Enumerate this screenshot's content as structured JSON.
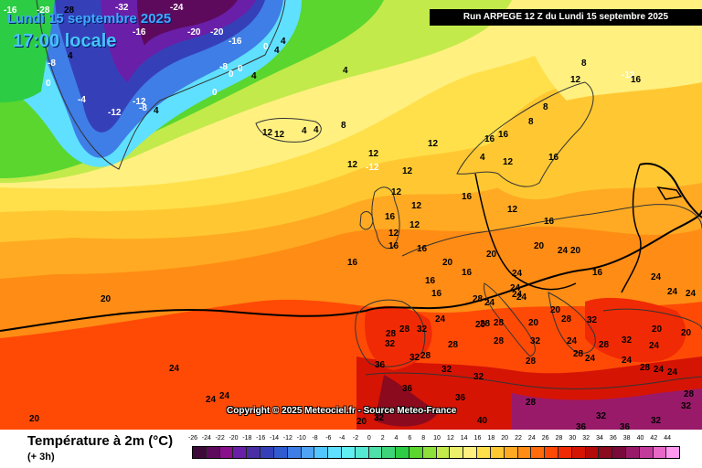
{
  "header": {
    "date": "Lundi 15 septembre 2025",
    "local_time": "17:00 locale",
    "run": "Run ARPEGE 12 Z du Lundi 15 septembre 2025"
  },
  "copyright": "Copyright © 2025 Meteociel.fr - Source Meteo-France",
  "legend": {
    "title": "Température à 2m (°C)",
    "subtitle": "(+ 3h)",
    "scale_values": [
      "-26",
      "-24",
      "-22",
      "-20",
      "-18",
      "-16",
      "-14",
      "-12",
      "-10",
      "-8",
      "-6",
      "-4",
      "-2",
      "0",
      "2",
      "4",
      "6",
      "8",
      "10",
      "12",
      "14",
      "16",
      "18",
      "20",
      "22",
      "24",
      "26",
      "28",
      "30",
      "32",
      "34",
      "36",
      "38",
      "40",
      "42",
      "44"
    ],
    "scale_colors": [
      "#3d0a3a",
      "#5e0a5c",
      "#8a0f8c",
      "#6a1fa8",
      "#4a2ea6",
      "#3540b8",
      "#2f5cd0",
      "#3f7ee6",
      "#4fa3f5",
      "#52c7ff",
      "#5fe0ff",
      "#60f0f2",
      "#55e8d2",
      "#4de0a8",
      "#3ed57a",
      "#2ccc44",
      "#5ad62f",
      "#8ee03a",
      "#c2ea4a",
      "#ecf06a",
      "#fff080",
      "#ffe04a",
      "#ffc832",
      "#ffaa22",
      "#ff8c14",
      "#ff6a0a",
      "#ff4a06",
      "#f02a04",
      "#d61404",
      "#b40a0a",
      "#8c0a1e",
      "#7a0a3a",
      "#9a1a6a",
      "#c23a9a",
      "#e868c8",
      "#ff98ee"
    ]
  },
  "map_labels": [
    {
      "t": "-16"
    },
    {
      "t": "-28"
    },
    {
      "t": "28"
    },
    {
      "t": "-32"
    },
    {
      "t": "-24"
    },
    {
      "t": "-16"
    },
    {
      "t": "-20"
    },
    {
      "t": "-20"
    },
    {
      "t": "-16"
    },
    {
      "t": "0"
    },
    {
      "t": "4"
    },
    {
      "t": "-8"
    },
    {
      "t": "0"
    },
    {
      "t": "-8"
    },
    {
      "t": "0"
    },
    {
      "t": "4"
    },
    {
      "t": "0"
    },
    {
      "t": "-4"
    },
    {
      "t": "-12"
    },
    {
      "t": "-8"
    },
    {
      "t": "-12"
    },
    {
      "t": "4"
    },
    {
      "t": "0"
    },
    {
      "t": "4"
    },
    {
      "t": "4"
    },
    {
      "t": "4"
    },
    {
      "t": "4"
    },
    {
      "t": "8"
    },
    {
      "t": "12"
    },
    {
      "t": "12"
    },
    {
      "t": "4"
    },
    {
      "t": "12"
    },
    {
      "t": "12"
    },
    {
      "t": "12"
    },
    {
      "t": "12"
    },
    {
      "t": "12"
    },
    {
      "t": "16"
    },
    {
      "t": "12"
    },
    {
      "t": "16"
    },
    {
      "t": "12"
    },
    {
      "t": "16"
    },
    {
      "t": "16"
    },
    {
      "t": "16"
    },
    {
      "t": "16"
    },
    {
      "t": "16"
    },
    {
      "t": "16"
    },
    {
      "t": "8"
    },
    {
      "t": "8"
    },
    {
      "t": "12"
    },
    {
      "t": "12"
    },
    {
      "t": "16"
    },
    {
      "t": "4"
    },
    {
      "t": "12"
    },
    {
      "t": "8"
    },
    {
      "t": "-12"
    },
    {
      "t": "16"
    },
    {
      "t": "20"
    },
    {
      "t": "20"
    },
    {
      "t": "16"
    },
    {
      "t": "16"
    },
    {
      "t": "20"
    },
    {
      "t": "16"
    },
    {
      "t": "24"
    },
    {
      "t": "20"
    },
    {
      "t": "24"
    },
    {
      "t": "24"
    },
    {
      "t": "24"
    },
    {
      "t": "28"
    },
    {
      "t": "24"
    },
    {
      "t": "20"
    },
    {
      "t": "24"
    },
    {
      "t": "28"
    },
    {
      "t": "28"
    },
    {
      "t": "20"
    },
    {
      "t": "20"
    },
    {
      "t": "28"
    },
    {
      "t": "32"
    },
    {
      "t": "28"
    },
    {
      "t": "28"
    },
    {
      "t": "32"
    },
    {
      "t": "24"
    },
    {
      "t": "32"
    },
    {
      "t": "28"
    },
    {
      "t": "28"
    },
    {
      "t": "32"
    },
    {
      "t": "24"
    },
    {
      "t": "28"
    },
    {
      "t": "28"
    },
    {
      "t": "32"
    },
    {
      "t": "24"
    },
    {
      "t": "20"
    },
    {
      "t": "20"
    },
    {
      "t": "24"
    },
    {
      "t": "24"
    },
    {
      "t": "24"
    },
    {
      "t": "36"
    },
    {
      "t": "28"
    },
    {
      "t": "32"
    },
    {
      "t": "32"
    },
    {
      "t": "32"
    },
    {
      "t": "28"
    },
    {
      "t": "24"
    },
    {
      "t": "24"
    },
    {
      "t": "28"
    },
    {
      "t": "24"
    },
    {
      "t": "24"
    },
    {
      "t": "36"
    },
    {
      "t": "36"
    },
    {
      "t": "40"
    },
    {
      "t": "32"
    },
    {
      "t": "28"
    },
    {
      "t": "36"
    },
    {
      "t": "32"
    },
    {
      "t": "36"
    },
    {
      "t": "32"
    },
    {
      "t": "32"
    },
    {
      "t": "28"
    },
    {
      "t": "20"
    },
    {
      "t": "20"
    },
    {
      "t": "20"
    },
    {
      "t": "24"
    },
    {
      "t": "24"
    },
    {
      "t": "24"
    },
    {
      "t": "12"
    },
    {
      "t": "-12"
    },
    {
      "t": "16"
    }
  ]
}
